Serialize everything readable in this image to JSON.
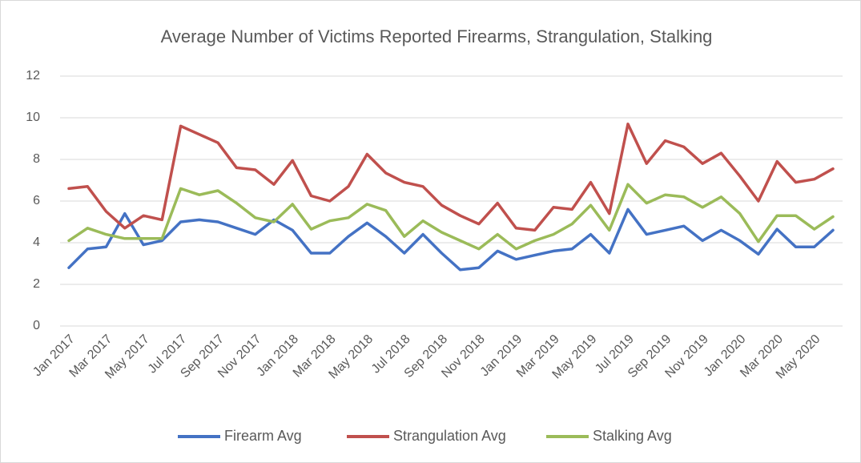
{
  "chart_data": {
    "type": "line",
    "title": "Average Number of Victims Reported Firearms, Strangulation, Stalking",
    "categories": [
      "Jan 2017",
      null,
      "Mar 2017",
      null,
      "May 2017",
      null,
      "Jul 2017",
      null,
      "Sep 2017",
      null,
      "Nov 2017",
      null,
      "Jan 2018",
      null,
      "Mar 2018",
      null,
      "May 2018",
      null,
      "Jul 2018",
      null,
      "Sep 2018",
      null,
      "Nov 2018",
      null,
      "Jan 2019",
      null,
      "Mar 2019",
      null,
      "May 2019",
      null,
      "Jul 2019",
      null,
      "Sep 2019",
      null,
      "Nov 2019",
      null,
      "Jan 2020",
      null,
      "Mar 2020",
      null,
      "May 2020",
      null
    ],
    "series": [
      {
        "name": "Firearm Avg",
        "color": "#4472c4",
        "values": [
          2.8,
          3.7,
          3.8,
          5.4,
          3.9,
          4.1,
          5.0,
          5.1,
          5.0,
          4.7,
          4.4,
          5.1,
          4.6,
          3.5,
          3.5,
          4.3,
          4.95,
          4.3,
          3.5,
          4.4,
          3.5,
          2.7,
          2.8,
          3.6,
          3.2,
          3.4,
          3.6,
          3.7,
          4.4,
          3.5,
          5.6,
          4.4,
          4.6,
          4.8,
          4.1,
          4.6,
          4.1,
          3.45,
          4.65,
          3.8,
          3.8,
          4.6
        ]
      },
      {
        "name": "Strangulation Avg",
        "color": "#c0504d",
        "values": [
          6.6,
          6.7,
          5.5,
          4.7,
          5.3,
          5.1,
          9.6,
          9.2,
          8.8,
          7.6,
          7.5,
          6.8,
          7.95,
          6.25,
          6.0,
          6.7,
          8.25,
          7.35,
          6.9,
          6.7,
          5.8,
          5.3,
          4.9,
          5.9,
          4.7,
          4.6,
          5.7,
          5.6,
          6.9,
          5.4,
          9.7,
          7.8,
          8.9,
          8.6,
          7.8,
          8.3,
          7.2,
          6.0,
          7.9,
          6.9,
          7.05,
          7.55
        ]
      },
      {
        "name": "Stalking Avg",
        "color": "#9bbb59",
        "values": [
          4.1,
          4.7,
          4.4,
          4.2,
          4.2,
          4.2,
          6.6,
          6.3,
          6.5,
          5.9,
          5.2,
          5.0,
          5.85,
          4.65,
          5.05,
          5.2,
          5.85,
          5.55,
          4.3,
          5.05,
          4.5,
          4.1,
          3.7,
          4.4,
          3.7,
          4.1,
          4.4,
          4.9,
          5.8,
          4.6,
          6.8,
          5.9,
          6.3,
          6.2,
          5.7,
          6.2,
          5.4,
          4.05,
          5.3,
          5.3,
          4.65,
          5.25
        ]
      }
    ],
    "ylim": [
      0,
      12
    ],
    "yticks": [
      0,
      2,
      4,
      6,
      8,
      10,
      12
    ],
    "grid": true,
    "legend": "bottom"
  }
}
